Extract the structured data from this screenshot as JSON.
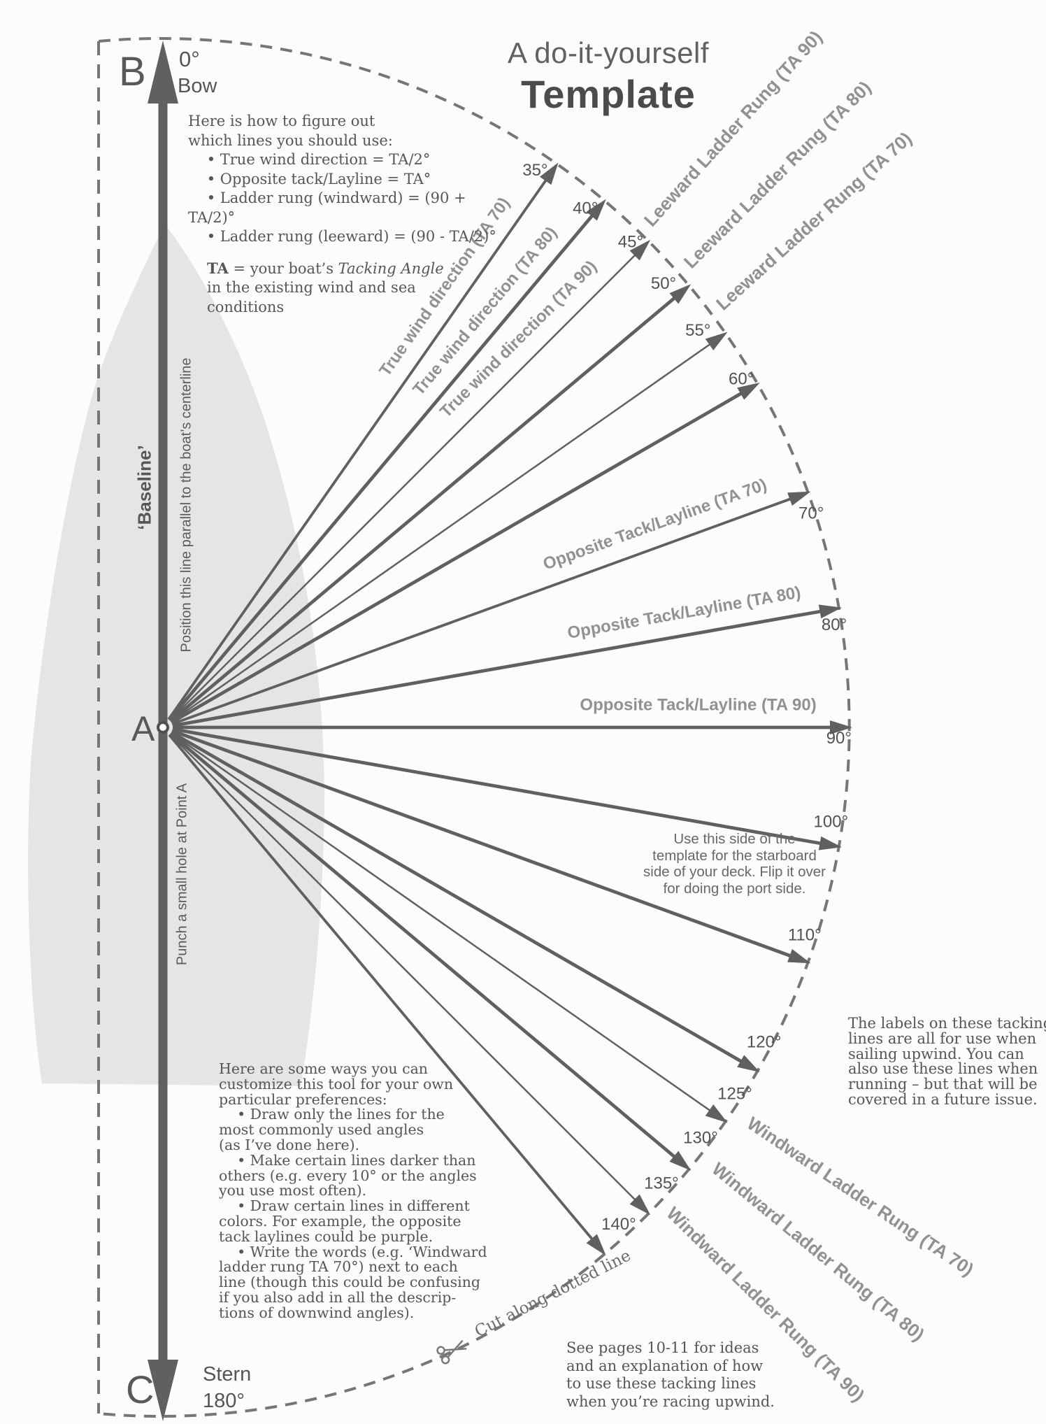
{
  "title": {
    "line1": "A do-it-yourself",
    "line2": "Template"
  },
  "instructions": {
    "intro": "Here is how to figure out\nwhich lines you should use:\n    • True wind direction = TA/2°\n    • Opposite tack/Layline = TA°\n    • Ladder rung (windward) = (90 + TA/2)°\n    • Ladder rung (leeward) = (90 - TA/2)°",
    "ta_bold": "TA",
    "ta_mid": " = your boat’s ",
    "ta_italic": "Tacking Angle",
    "ta_rest": "in the existing wind and sea\nconditions"
  },
  "baseline_axis": {
    "point_b": "B",
    "point_a": "A",
    "point_c": "C",
    "bow_deg": "0°",
    "bow": "Bow",
    "stern": "Stern",
    "stern_deg": "180°",
    "baseline_label": "‘Baseline’",
    "position_note": "Position this line parallel to the boat’s centerline",
    "punch_note": "Punch a small hole at Point A"
  },
  "rays": [
    {
      "deg": 35,
      "tick": "35°",
      "label": "True wind direction (TA 70)",
      "weight": "medium"
    },
    {
      "deg": 40,
      "tick": "40°",
      "label": "True wind direction (TA 80)",
      "weight": "thick"
    },
    {
      "deg": 45,
      "tick": "45°",
      "label": "True wind direction (TA 90)",
      "weight": "thin"
    },
    {
      "deg": 50,
      "tick": "50°",
      "label": null,
      "weight": "thick"
    },
    {
      "deg": 55,
      "tick": "55°",
      "label": null,
      "weight": "thin"
    },
    {
      "deg": 60,
      "tick": "60°",
      "label": null,
      "weight": "thick"
    },
    {
      "deg": 70,
      "tick": "70°",
      "label": "Opposite Tack/Layline (TA 70)",
      "weight": "medium"
    },
    {
      "deg": 80,
      "tick": "80°",
      "label": "Opposite Tack/Layline (TA 80)",
      "weight": "thick"
    },
    {
      "deg": 90,
      "tick": "90°",
      "label": "Opposite Tack/Layline (TA 90)",
      "weight": "thick"
    },
    {
      "deg": 100,
      "tick": "100°",
      "label": null,
      "weight": "thick"
    },
    {
      "deg": 110,
      "tick": "110°",
      "label": null,
      "weight": "thick"
    },
    {
      "deg": 120,
      "tick": "120°",
      "label": null,
      "weight": "thick"
    },
    {
      "deg": 125,
      "tick": "125°",
      "label": null,
      "weight": "thin"
    },
    {
      "deg": 130,
      "tick": "130°",
      "label": null,
      "weight": "thick"
    },
    {
      "deg": 135,
      "tick": "135°",
      "label": null,
      "weight": "thin"
    },
    {
      "deg": 140,
      "tick": "140°",
      "label": null,
      "weight": "medium"
    }
  ],
  "ladder_labels": {
    "leeward": [
      {
        "text": "Leeward Ladder Rung (TA 90)",
        "for_deg": 45
      },
      {
        "text": "Leeward Ladder Rung (TA 80)",
        "for_deg": 50
      },
      {
        "text": "Leeward Ladder Rung (TA 70)",
        "for_deg": 55
      }
    ],
    "windward": [
      {
        "text": "Windward Ladder Rung (TA 70)",
        "for_deg": 125
      },
      {
        "text": "Windward Ladder Rung (TA 80)",
        "for_deg": 130
      },
      {
        "text": "Windward Ladder Rung (TA 90)",
        "for_deg": 135
      }
    ]
  },
  "notes": {
    "starboard": "Use this side of the\ntemplate for the starboard\nside of your deck. Flip it over\nfor doing the port side.",
    "upwind": "The labels on these tacking\nlines are all for use when\nsailing upwind. You can\nalso use these lines when\nrunning – but that will be\ncovered in a future issue.",
    "customize": "Here are some ways you can\ncustomize this tool for your own\nparticular preferences:\n    • Draw only the lines for the\nmost commonly used angles\n(as I’ve done here).\n    • Make certain lines darker than\nothers (e.g. every 10° or the angles\nyou use most often).\n    • Draw certain lines in different\ncolors. For example, the opposite\ntack laylines could be purple.\n    • Write the words (e.g. ‘Windward\nladder rung TA 70°) next to each\nline (though this could be confusing\nif you also add in all the descrip-\ntions of downwind angles).",
    "see_pages": "See pages 10-11 for ideas\nand an explanation of how\nto use these tacking lines\nwhen you’re racing upwind.",
    "cut_line": "Cut along dotted line"
  },
  "colors": {
    "ink": "#5f6062",
    "tick_text": "#515254",
    "label_gray": "#8f9194",
    "dash": "#747678",
    "body_text": "#55565a",
    "hull": "#e5e5e3",
    "paper": "#fcfcfa"
  }
}
